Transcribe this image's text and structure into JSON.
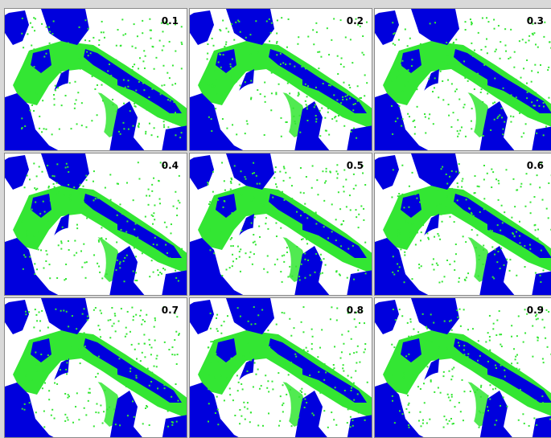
{
  "panels": [
    {
      "label": "0.1"
    },
    {
      "label": "0.2"
    },
    {
      "label": "0.3"
    },
    {
      "label": "0.4"
    },
    {
      "label": "0.5"
    },
    {
      "label": "0.6"
    },
    {
      "label": "0.7"
    },
    {
      "label": "0.8"
    },
    {
      "label": "0.9"
    }
  ]
}
